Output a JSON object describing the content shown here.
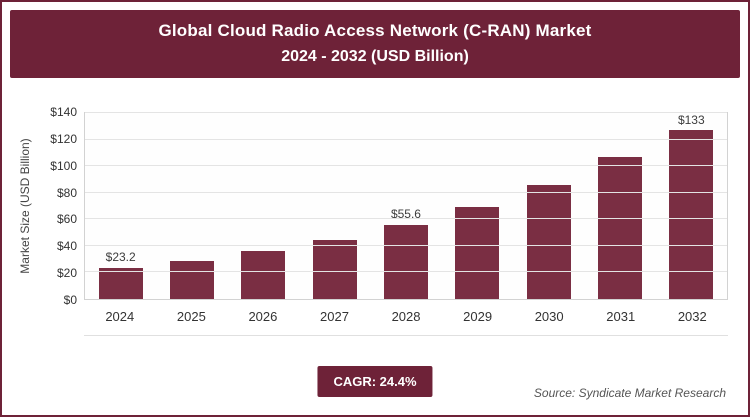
{
  "header": {
    "title_line1": "Global Cloud Radio Access Network (C-RAN) Market",
    "title_line2": "2024 - 2032 (USD Billion)"
  },
  "colors": {
    "bar": "#7a2e43",
    "header_bg": "#6e2238"
  },
  "chart_data": {
    "type": "bar",
    "title": "Global Cloud Radio Access Network (C-RAN) Market 2024 - 2032 (USD Billion)",
    "categories": [
      "2024",
      "2025",
      "2026",
      "2027",
      "2028",
      "2029",
      "2030",
      "2031",
      "2032"
    ],
    "values": [
      23.2,
      28.9,
      35.9,
      44.7,
      55.6,
      69.1,
      86.0,
      107.0,
      133
    ],
    "bar_labels": [
      "$23.2",
      "",
      "",
      "",
      "$55.6",
      "",
      "",
      "",
      "$133"
    ],
    "xlabel": "",
    "ylabel": "Market Size (USD Billion)",
    "ylim": [
      0,
      140
    ],
    "grid": true,
    "legend": "none",
    "yticks": [
      {
        "label": "$0",
        "v": 0
      },
      {
        "label": "$20",
        "v": 20
      },
      {
        "label": "$40",
        "v": 40
      },
      {
        "label": "$60",
        "v": 60
      },
      {
        "label": "$80",
        "v": 80
      },
      {
        "label": "$100",
        "v": 100
      },
      {
        "label": "$120",
        "v": 120
      },
      {
        "label": "$140",
        "v": 140
      }
    ]
  },
  "footer": {
    "cagr_label": "CAGR: 24.4%",
    "source": "Source: Syndicate Market Research"
  }
}
